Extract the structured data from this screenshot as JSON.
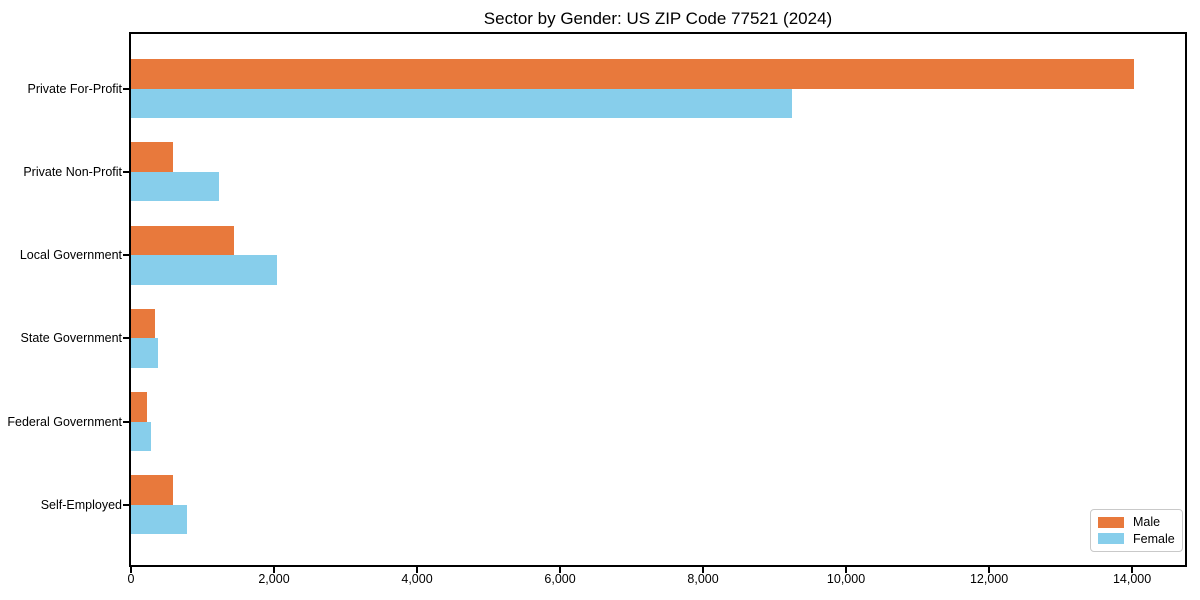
{
  "figure": {
    "title": "Sector by Gender: US ZIP Code 77521 (2024)"
  },
  "chart_data": {
    "type": "bar",
    "orientation": "horizontal",
    "title": "Sector by Gender: US ZIP Code 77521 (2024)",
    "categories": [
      "Private For-Profit",
      "Private Non-Profit",
      "Local Government",
      "State Government",
      "Federal Government",
      "Self-Employed"
    ],
    "series": [
      {
        "name": "Male",
        "color": "#e8793c",
        "values": [
          14030,
          590,
          1440,
          330,
          220,
          590
        ]
      },
      {
        "name": "Female",
        "color": "#87ceeb",
        "values": [
          9240,
          1230,
          2040,
          380,
          280,
          780
        ]
      }
    ],
    "xlabel": "",
    "ylabel": "",
    "xlim": [
      0,
      14740
    ],
    "x_ticks": [
      0,
      2000,
      4000,
      6000,
      8000,
      10000,
      12000,
      14000
    ],
    "x_tick_labels": [
      "0",
      "2,000",
      "4,000",
      "6,000",
      "8,000",
      "10,000",
      "12,000",
      "14,000"
    ],
    "grid": false,
    "background": "#ffffff",
    "axis_color": "#000000",
    "legend": {
      "position": "lower right",
      "entries": [
        {
          "label": "Male",
          "color": "#e8793c"
        },
        {
          "label": "Female",
          "color": "#87ceeb"
        }
      ]
    }
  }
}
